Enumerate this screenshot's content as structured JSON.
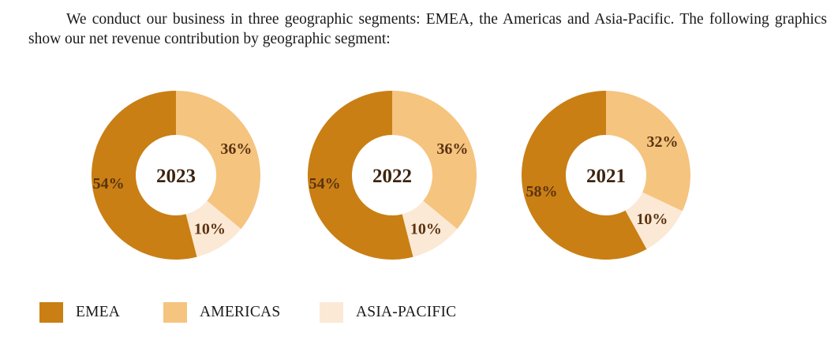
{
  "intro_text": "We conduct our business in three geographic segments: EMEA, the Americas and Asia-Pacific. The following graphics show our net revenue contribution by geographic segment:",
  "colors": {
    "emea": "#C97F14",
    "americas": "#F5C47F",
    "asia_pacific": "#FBE9D6",
    "label_text": "#5a3210",
    "center_text": "#3d2410"
  },
  "chart_data": [
    {
      "type": "pie",
      "title": "2023",
      "categories": [
        "EMEA",
        "AMERICAS",
        "ASIA-PACIFIC"
      ],
      "values": [
        54,
        36,
        10
      ],
      "labels": [
        "54%",
        "36%",
        "10%"
      ]
    },
    {
      "type": "pie",
      "title": "2022",
      "categories": [
        "EMEA",
        "AMERICAS",
        "ASIA-PACIFIC"
      ],
      "values": [
        54,
        36,
        10
      ],
      "labels": [
        "54%",
        "36%",
        "10%"
      ]
    },
    {
      "type": "pie",
      "title": "2021",
      "categories": [
        "EMEA",
        "AMERICAS",
        "ASIA-PACIFIC"
      ],
      "values": [
        58,
        32,
        10
      ],
      "labels": [
        "58%",
        "32%",
        "10%"
      ]
    }
  ],
  "legend": [
    {
      "label": "EMEA",
      "color": "#C97F14"
    },
    {
      "label": "AMERICAS",
      "color": "#F5C47F"
    },
    {
      "label": "ASIA-PACIFIC",
      "color": "#FBE9D6"
    }
  ]
}
